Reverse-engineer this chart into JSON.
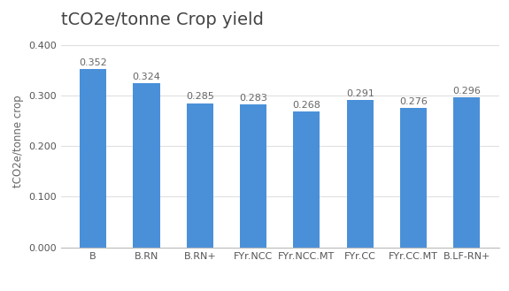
{
  "title": "tCO2e/tonne Crop yield",
  "categories": [
    "B",
    "B.RN",
    "B.RN+",
    "FYr.NCC",
    "FYr.NCC.MT",
    "FYr.CC",
    "FYr.CC.MT",
    "B.LF-RN+"
  ],
  "values": [
    0.352,
    0.324,
    0.285,
    0.283,
    0.268,
    0.291,
    0.276,
    0.296
  ],
  "bar_color": "#4a90d9",
  "ylabel": "tCO2e/tonne crop",
  "ylim": [
    0.0,
    0.42
  ],
  "yticks": [
    0.0,
    0.1,
    0.2,
    0.3,
    0.4
  ],
  "background_color": "#ffffff",
  "grid_color": "#e0e0e0",
  "title_fontsize": 14,
  "label_fontsize": 8.5,
  "tick_fontsize": 8,
  "value_fontsize": 8,
  "value_color": "#666666"
}
